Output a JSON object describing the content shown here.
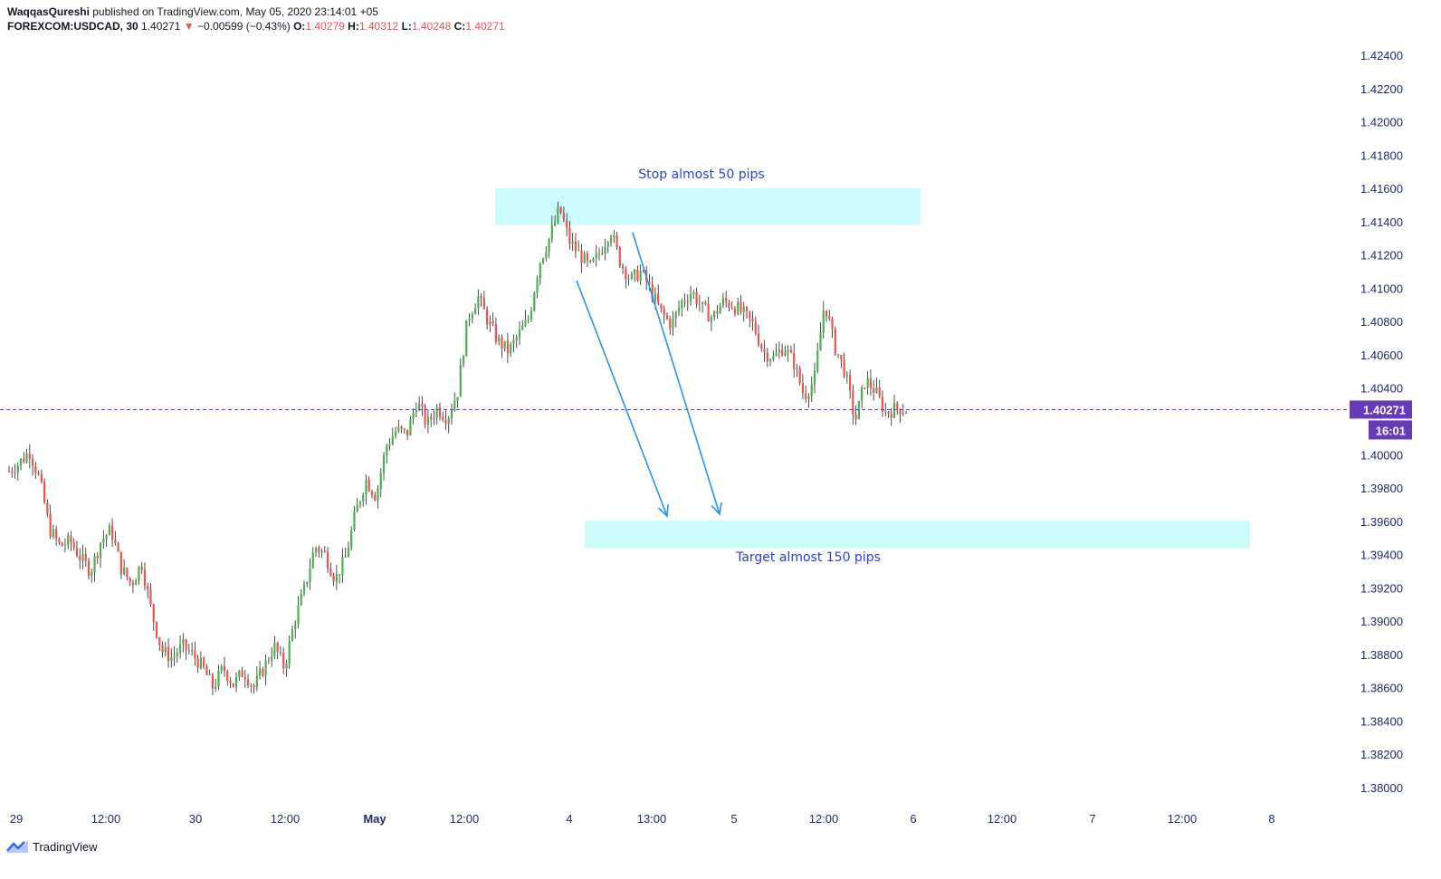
{
  "header": {
    "author": "WaqqasQureshi",
    "published": " published on TradingView.com, May 05, 2020 23:14:01 +05",
    "symbol": "FOREXCOM:USDCAD, 30",
    "last": "1.40271",
    "arrow": "▼",
    "change": "−0.00599 (−0.43%)",
    "o_label": "O:",
    "o": "1.40279",
    "h_label": "H:",
    "h": "1.40312",
    "l_label": "L:",
    "l": "1.40248",
    "c_label": "C:",
    "c": "1.40271"
  },
  "brand": {
    "name": "TradingView",
    "icon": "tradingview-logo-icon"
  },
  "colors": {
    "up": "#4caf50",
    "down": "#ef5350",
    "accent": "#2196f3",
    "zone": "#ccfbfb",
    "priceLine": "#6a3fc8",
    "annotation": "#2a3fe6",
    "labelBg": "#673ab7"
  },
  "chart_data": {
    "type": "candlestick",
    "title": "",
    "ylim": [
      1.379,
      1.425
    ],
    "y_ticks": [
      "1.42400",
      "1.42200",
      "1.42000",
      "1.41800",
      "1.41600",
      "1.41400",
      "1.41200",
      "1.41000",
      "1.40800",
      "1.40600",
      "1.40400",
      "1.40000",
      "1.39800",
      "1.39600",
      "1.39400",
      "1.39200",
      "1.39000",
      "1.38800",
      "1.38600",
      "1.38400",
      "1.38200",
      "1.38000"
    ],
    "x_ticks": [
      "29",
      "12:00",
      "30",
      "12:00",
      "May",
      "12:00",
      "4",
      "13:00",
      "5",
      "12:00",
      "6",
      "12:00",
      "7",
      "12:00",
      "8"
    ],
    "current_price": "1.40271",
    "countdown": "16:01",
    "close_path": [
      1.399,
      1.3995,
      1.4002,
      1.3985,
      1.3955,
      1.3945,
      1.3948,
      1.3938,
      1.393,
      1.3948,
      1.3955,
      1.3932,
      1.3922,
      1.3935,
      1.3905,
      1.3882,
      1.3878,
      1.3885,
      1.388,
      1.3872,
      1.386,
      1.3872,
      1.3862,
      1.387,
      1.386,
      1.3872,
      1.3885,
      1.3872,
      1.39,
      1.392,
      1.3945,
      1.394,
      1.3925,
      1.3938,
      1.3965,
      1.3985,
      1.3975,
      1.4005,
      1.4015,
      1.4012,
      1.4032,
      1.4018,
      1.4028,
      1.4022,
      1.4038,
      1.4082,
      1.4095,
      1.408,
      1.4068,
      1.4062,
      1.4072,
      1.4082,
      1.4115,
      1.413,
      1.4148,
      1.4128,
      1.412,
      1.4112,
      1.4122,
      1.4135,
      1.4115,
      1.4105,
      1.411,
      1.4098,
      1.4085,
      1.4078,
      1.4092,
      1.4098,
      1.4088,
      1.4082,
      1.4092,
      1.409,
      1.4085,
      1.4078,
      1.4062,
      1.4058,
      1.4065,
      1.4055,
      1.4035,
      1.4045,
      1.4092,
      1.4065,
      1.405,
      1.402,
      1.4045,
      1.4038,
      1.4025,
      1.4028,
      1.4027
    ],
    "close_path_note": "",
    "annotations": [
      {
        "text": "Stop almost 50 pips",
        "zone": [
          1.4138,
          1.4158
        ]
      },
      {
        "text": "Target almost 150 pips",
        "zone": [
          1.3946,
          1.3962
        ]
      }
    ]
  }
}
